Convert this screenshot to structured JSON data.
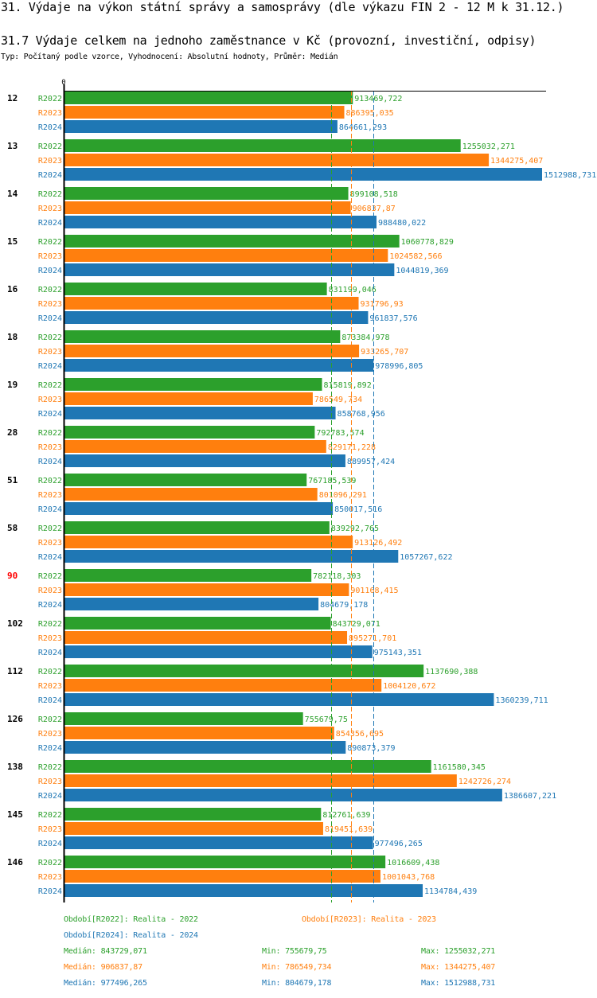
{
  "header": {
    "title": "31. Výdaje na výkon státní správy a samosprávy (dle výkazu FIN 2 - 12 M k 31.12.)",
    "subtitle": "31.7 Výdaje celkem na jednoho zaměstnance v Kč (provozní, investiční, odpisy)",
    "info": "Typ: Počítaný podle vzorce, Vyhodnocení: Absolutní hodnoty, Průměr: Medián"
  },
  "chart_data": {
    "type": "bar",
    "orientation": "horizontal",
    "title": "31.7 Výdaje celkem na jednoho zaměstnance v Kč (provozní, investiční, odpisy)",
    "xlabel": "",
    "ylabel": "",
    "x_tick_labels": [
      "0"
    ],
    "xlim": [
      0,
      1512988.731
    ],
    "grid": false,
    "highlighted_category": "90",
    "categories": [
      "12",
      "13",
      "14",
      "15",
      "16",
      "18",
      "19",
      "28",
      "51",
      "58",
      "90",
      "102",
      "112",
      "126",
      "138",
      "145",
      "146"
    ],
    "series": [
      {
        "name": "R2022",
        "color": "#2ca02c",
        "value_labels": [
          "913469,722",
          "1255032,271",
          "899108,518",
          "1060778,829",
          "831199,046",
          "873384,978",
          "815819,892",
          "792783,574",
          "767185,539",
          "839292,765",
          "782118,303",
          "843729,071",
          "1137690,388",
          "755679,75",
          "1161580,345",
          "812761,639",
          "1016609,438"
        ],
        "values": [
          913469.722,
          1255032.271,
          899108.518,
          1060778.829,
          831199.046,
          873384.978,
          815819.892,
          792783.574,
          767185.539,
          839292.765,
          782118.303,
          843729.071,
          1137690.388,
          755679.75,
          1161580.345,
          812761.639,
          1016609.438
        ],
        "median": 843729.071
      },
      {
        "name": "R2023",
        "color": "#ff7f0e",
        "value_labels": [
          "886395,035",
          "1344275,407",
          "906837,87",
          "1024582,566",
          "931796,93",
          "933265,707",
          "786549,734",
          "829171,228",
          "801096,291",
          "913126,492",
          "901168,415",
          "895271,701",
          "1004120,672",
          "854356,695",
          "1242726,274",
          "819451,639",
          "1001043,768"
        ],
        "values": [
          886395.035,
          1344275.407,
          906837.87,
          1024582.566,
          931796.93,
          933265.707,
          786549.734,
          829171.228,
          801096.291,
          913126.492,
          901168.415,
          895271.701,
          1004120.672,
          854356.695,
          1242726.274,
          819451.639,
          1001043.768
        ],
        "median": 906837.87
      },
      {
        "name": "R2024",
        "color": "#1f77b4",
        "value_labels": [
          "864661,293",
          "1512988,731",
          "988480,022",
          "1044819,369",
          "961837,576",
          "978996,805",
          "858768,956",
          "889957,424",
          "850017,516",
          "1057267,622",
          "804679,178",
          "975143,351",
          "1360239,711",
          "890873,379",
          "1386607,221",
          "977496,265",
          "1134784,439"
        ],
        "values": [
          864661.293,
          1512988.731,
          988480.022,
          1044819.369,
          961837.576,
          978996.805,
          858768.956,
          889957.424,
          850017.516,
          1057267.622,
          804679.178,
          975143.351,
          1360239.711,
          890873.379,
          1386607.221,
          977496.265,
          1134784.439
        ],
        "median": 977496.265
      }
    ]
  },
  "legend": {
    "periods": [
      {
        "text": "Období[R2022]: Realita - 2022",
        "color": "#2ca02c"
      },
      {
        "text": "Období[R2023]: Realita - 2023",
        "color": "#ff7f0e"
      },
      {
        "text": "Období[R2024]: Realita - 2024",
        "color": "#1f77b4"
      }
    ],
    "stats": [
      {
        "median": "Medián: 843729,071",
        "min": "Min: 755679,75",
        "max": "Max: 1255032,271",
        "color": "#2ca02c"
      },
      {
        "median": "Medián: 906837,87",
        "min": "Min: 786549,734",
        "max": "Max: 1344275,407",
        "color": "#ff7f0e"
      },
      {
        "median": "Medián: 977496,265",
        "min": "Min: 804679,178",
        "max": "Max: 1512988,731",
        "color": "#1f77b4"
      }
    ]
  }
}
